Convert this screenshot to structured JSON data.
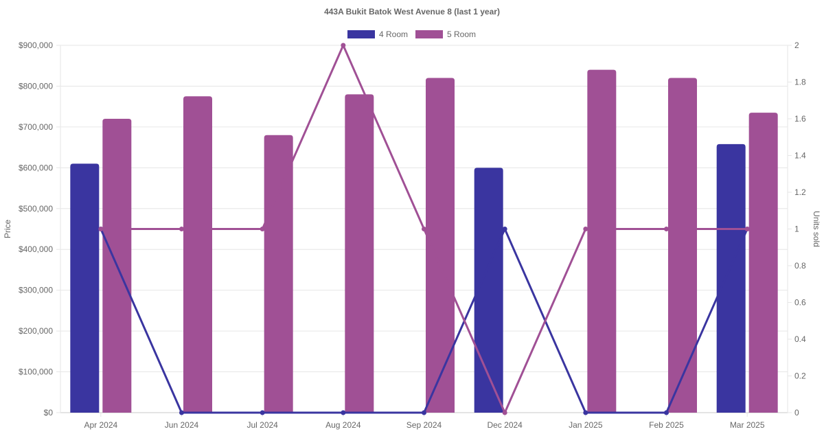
{
  "chart_data": {
    "type": "bar",
    "title": "443A Bukit Batok West Avenue 8 (last 1 year)",
    "categories": [
      "Apr 2024",
      "Jun 2024",
      "Jul 2024",
      "Aug 2024",
      "Sep 2024",
      "Dec 2024",
      "Jan 2025",
      "Feb 2025",
      "Mar 2025"
    ],
    "series": [
      {
        "name": "4 Room",
        "color": "#3a35a0",
        "price": [
          610000,
          null,
          null,
          null,
          null,
          600000,
          null,
          null,
          658000
        ],
        "units_sold": [
          1,
          0,
          0,
          0,
          0,
          1,
          0,
          0,
          1
        ]
      },
      {
        "name": "5 Room",
        "color": "#a05095",
        "price": [
          720000,
          775000,
          680000,
          780000,
          820000,
          null,
          840000,
          820000,
          735000
        ],
        "units_sold": [
          1,
          1,
          1,
          2,
          1,
          0,
          1,
          1,
          1
        ]
      }
    ],
    "y_left": {
      "label": "Price",
      "min": 0,
      "max": 900000,
      "ticks": [
        "$0",
        "$100,000",
        "$200,000",
        "$300,000",
        "$400,000",
        "$500,000",
        "$600,000",
        "$700,000",
        "$800,000",
        "$900,000"
      ]
    },
    "y_right": {
      "label": "Units sold",
      "min": 0,
      "max": 2,
      "ticks": [
        "0",
        "0.2",
        "0.4",
        "0.6",
        "0.8",
        "1",
        "1.2",
        "1.4",
        "1.6",
        "1.8",
        "2"
      ]
    },
    "legend_position": "top",
    "grid": true
  }
}
